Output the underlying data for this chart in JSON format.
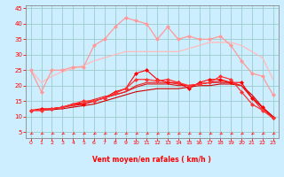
{
  "x": [
    0,
    1,
    2,
    3,
    4,
    5,
    6,
    7,
    8,
    9,
    10,
    11,
    12,
    13,
    14,
    15,
    16,
    17,
    18,
    19,
    20,
    21,
    22,
    23
  ],
  "series": [
    {
      "color": "#ff0000",
      "linewidth": 0.8,
      "marker": "D",
      "markersize": 2.0,
      "values": [
        12,
        12.5,
        12.5,
        13,
        14,
        14,
        15,
        16,
        18,
        19,
        24,
        25,
        22,
        21,
        21,
        19,
        21,
        22,
        22,
        21,
        21,
        16,
        13,
        9.5
      ]
    },
    {
      "color": "#cc0000",
      "linewidth": 0.8,
      "marker": null,
      "markersize": 0,
      "values": [
        12,
        12,
        12.2,
        12.5,
        13,
        13.5,
        14,
        15,
        16,
        17,
        18,
        18.5,
        19,
        19,
        19,
        19.5,
        20,
        20,
        20.5,
        20.5,
        20,
        17,
        13,
        10
      ]
    },
    {
      "color": "#dd1111",
      "linewidth": 0.8,
      "marker": null,
      "markersize": 0,
      "values": [
        12,
        12,
        12.5,
        13,
        13.5,
        14,
        15,
        16,
        17,
        18,
        19.5,
        20.5,
        20.5,
        20.5,
        20,
        20,
        20.5,
        21,
        21,
        21,
        20,
        16,
        13,
        9.5
      ]
    },
    {
      "color": "#ee2222",
      "linewidth": 0.8,
      "marker": null,
      "markersize": 0,
      "values": [
        12,
        12,
        12.5,
        13,
        14,
        14.5,
        15.5,
        16.5,
        17,
        18,
        20,
        21,
        21,
        21,
        20.5,
        20,
        20.5,
        21,
        21.5,
        21,
        20,
        16,
        12,
        9.5
      ]
    },
    {
      "color": "#ff3333",
      "linewidth": 0.9,
      "marker": "D",
      "markersize": 2.0,
      "values": [
        12,
        12,
        12.5,
        13,
        14,
        15,
        15,
        16,
        17.5,
        19,
        22,
        22,
        21.5,
        22,
        21,
        20,
        20.5,
        21,
        23,
        22,
        18,
        14,
        12,
        9.5
      ]
    },
    {
      "color": "#ff9999",
      "linewidth": 0.9,
      "marker": "D",
      "markersize": 2.0,
      "values": [
        25,
        18,
        25,
        25,
        26,
        26,
        33,
        35,
        39,
        42,
        41,
        40,
        35,
        39,
        35,
        36,
        35,
        35,
        36,
        33,
        28,
        24,
        23,
        17
      ]
    },
    {
      "color": "#ffbbbb",
      "linewidth": 0.9,
      "marker": null,
      "markersize": 0,
      "values": [
        25,
        21,
        23,
        24.5,
        25.5,
        26.5,
        28,
        29,
        30,
        31,
        31,
        31,
        31,
        31,
        31,
        32,
        33,
        34,
        34,
        34,
        33,
        31,
        29,
        22
      ]
    }
  ],
  "xlim": [
    -0.5,
    23.5
  ],
  "ylim": [
    3,
    46
  ],
  "yticks": [
    5,
    10,
    15,
    20,
    25,
    30,
    35,
    40,
    45
  ],
  "xticks": [
    0,
    1,
    2,
    3,
    4,
    5,
    6,
    7,
    8,
    9,
    10,
    11,
    12,
    13,
    14,
    15,
    16,
    17,
    18,
    19,
    20,
    21,
    22,
    23
  ],
  "xlabel": "Vent moyen/en rafales ( km/h )",
  "bg_color": "#cceeff",
  "grid_color": "#99cccc",
  "arrow_color": "#ff2222",
  "tick_color": "#ff0000",
  "label_color": "#ff0000"
}
